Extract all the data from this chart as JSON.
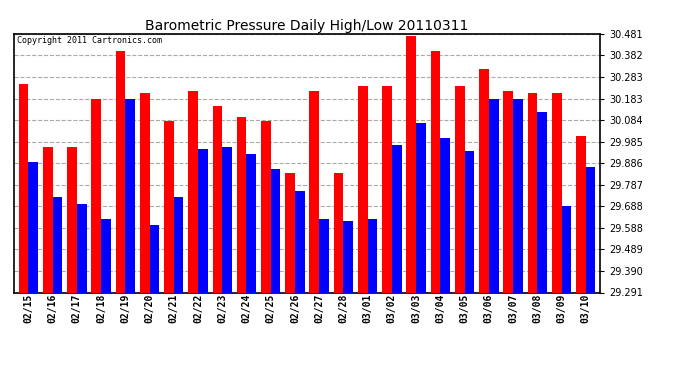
{
  "title": "Barometric Pressure Daily High/Low 20110311",
  "copyright": "Copyright 2011 Cartronics.com",
  "dates": [
    "02/15",
    "02/16",
    "02/17",
    "02/18",
    "02/19",
    "02/20",
    "02/21",
    "02/22",
    "02/23",
    "02/24",
    "02/25",
    "02/26",
    "02/27",
    "02/28",
    "03/01",
    "03/02",
    "03/03",
    "03/04",
    "03/05",
    "03/06",
    "03/07",
    "03/08",
    "03/09",
    "03/10"
  ],
  "highs": [
    30.25,
    29.96,
    29.96,
    30.18,
    30.4,
    30.21,
    30.08,
    30.22,
    30.15,
    30.1,
    30.08,
    29.84,
    30.22,
    29.84,
    30.24,
    30.24,
    30.47,
    30.4,
    30.24,
    30.32,
    30.22,
    30.21,
    30.21,
    30.01
  ],
  "lows": [
    29.89,
    29.73,
    29.7,
    29.63,
    30.18,
    29.6,
    29.73,
    29.95,
    29.96,
    29.93,
    29.86,
    29.76,
    29.63,
    29.62,
    29.63,
    29.97,
    30.07,
    30.0,
    29.94,
    30.18,
    30.18,
    30.12,
    29.69,
    29.87
  ],
  "ymin": 29.291,
  "ymax": 30.481,
  "yticks": [
    29.291,
    29.39,
    29.489,
    29.588,
    29.688,
    29.787,
    29.886,
    29.985,
    30.084,
    30.183,
    30.283,
    30.382,
    30.481
  ],
  "high_color": "#ff0000",
  "low_color": "#0000ff",
  "bg_color": "#ffffff",
  "grid_color": "#aaaaaa",
  "bar_width": 0.4
}
